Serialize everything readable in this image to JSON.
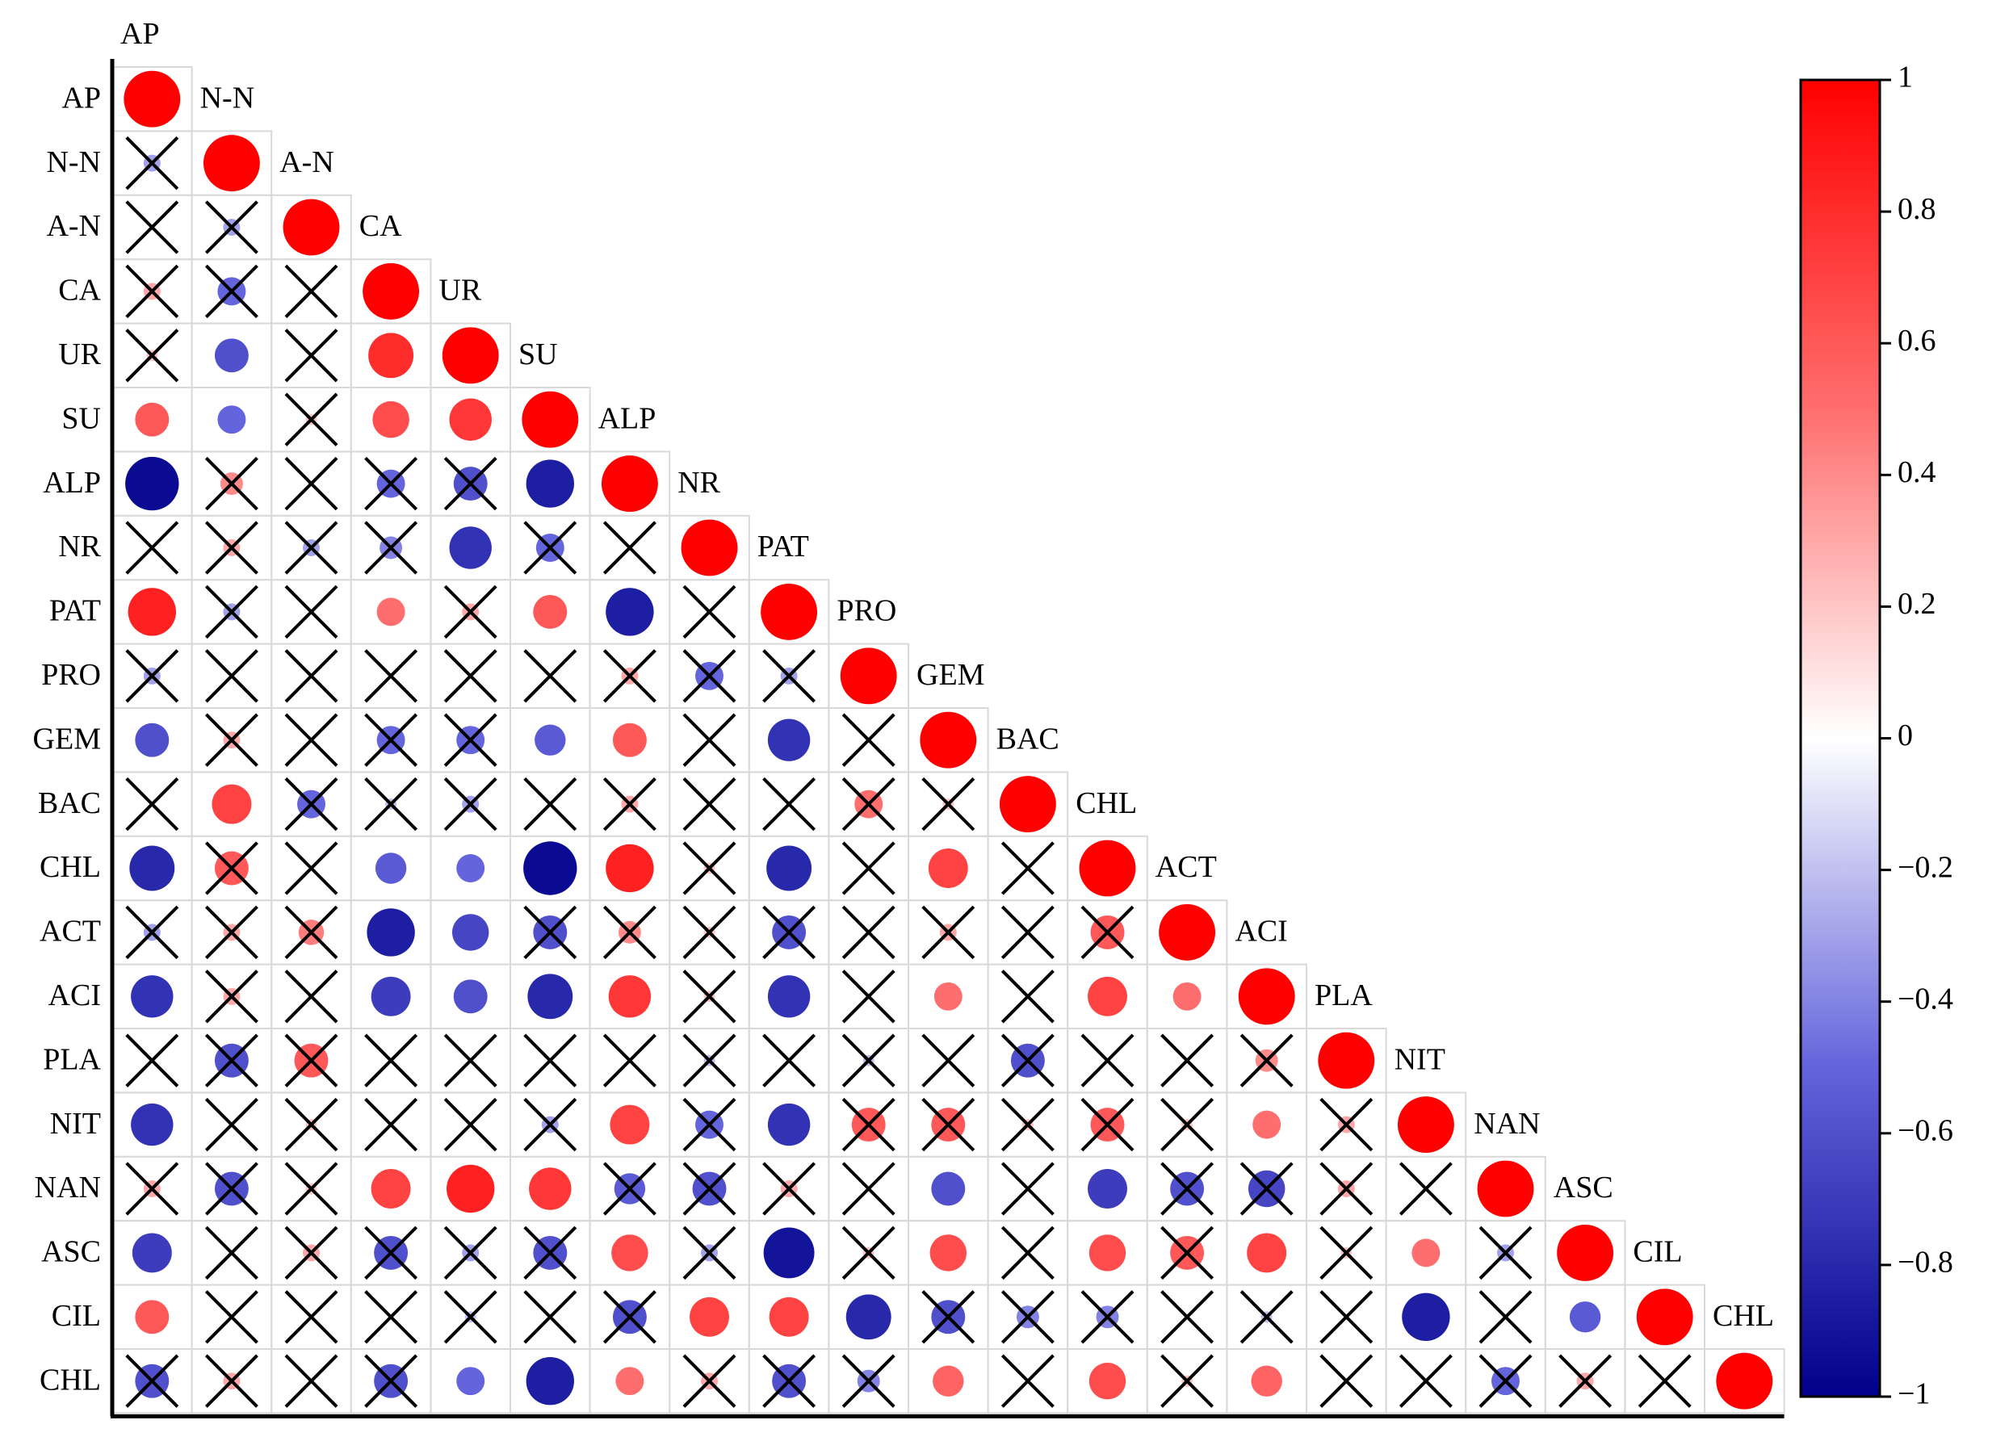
{
  "chart_data": {
    "type": "correlation",
    "labels": [
      "AP",
      "N-N",
      "A-N",
      "CA",
      "UR",
      "SU",
      "ALP",
      "NR",
      "PAT",
      "PRO",
      "GEM",
      "BAC",
      "CHL",
      "ACT",
      "ACI",
      "PLA",
      "NIT",
      "NAN",
      "ASC",
      "CIL",
      "CHL"
    ],
    "values": [
      [
        1
      ],
      [
        -0.3,
        1
      ],
      [
        -0.1,
        -0.3,
        1
      ],
      [
        0.3,
        -0.5,
        0,
        1
      ],
      [
        0.2,
        -0.6,
        0.1,
        0.8,
        1
      ],
      [
        0.6,
        -0.5,
        0.2,
        0.65,
        0.75,
        1
      ],
      [
        -0.95,
        0.4,
        0,
        -0.5,
        -0.6,
        -0.85,
        1
      ],
      [
        0,
        0.3,
        -0.3,
        -0.4,
        -0.75,
        -0.5,
        0,
        1
      ],
      [
        0.85,
        -0.3,
        0,
        0.5,
        0.3,
        0.6,
        -0.85,
        0.1,
        1
      ],
      [
        -0.3,
        0.1,
        0,
        0,
        0.1,
        0,
        0.3,
        -0.5,
        -0.3,
        1
      ],
      [
        -0.6,
        0.3,
        0,
        -0.5,
        -0.5,
        -0.55,
        0.6,
        0,
        -0.75,
        0.1,
        1
      ],
      [
        0,
        0.7,
        -0.5,
        -0.2,
        -0.3,
        -0.1,
        0.3,
        0,
        -0.1,
        0.5,
        0.2,
        1
      ],
      [
        -0.8,
        0.6,
        0,
        -0.55,
        -0.5,
        -0.95,
        0.85,
        0.2,
        -0.8,
        0,
        0.7,
        0.1,
        1
      ],
      [
        -0.3,
        0.3,
        0.45,
        -0.85,
        -0.65,
        -0.6,
        0.4,
        0.2,
        -0.6,
        0,
        0.3,
        0,
        0.6,
        1
      ],
      [
        -0.75,
        0.3,
        0,
        -0.7,
        -0.6,
        -0.8,
        0.75,
        0.2,
        -0.75,
        0,
        0.5,
        0,
        0.7,
        0.5,
        1
      ],
      [
        0,
        -0.6,
        0.6,
        0,
        0.1,
        0,
        0,
        -0.2,
        0,
        -0.2,
        0,
        -0.6,
        0,
        0,
        0.4,
        1
      ],
      [
        -0.75,
        0,
        0.2,
        -0.1,
        0,
        -0.3,
        0.7,
        -0.5,
        -0.75,
        0.6,
        0.6,
        0.2,
        0.6,
        0.2,
        0.5,
        0.3,
        1
      ],
      [
        0.3,
        -0.6,
        0.2,
        0.7,
        0.85,
        0.75,
        -0.55,
        -0.6,
        0.3,
        0,
        -0.6,
        0,
        -0.7,
        -0.6,
        -0.65,
        0.3,
        0,
        1
      ],
      [
        -0.7,
        0.1,
        0.3,
        -0.6,
        -0.3,
        -0.6,
        0.65,
        -0.3,
        -0.9,
        0.2,
        0.65,
        0,
        0.65,
        0.6,
        0.7,
        0.2,
        0.5,
        -0.3,
        1
      ],
      [
        0.6,
        0,
        0,
        0,
        -0.2,
        0,
        -0.6,
        0.7,
        0.7,
        -0.8,
        -0.6,
        -0.4,
        -0.4,
        0,
        -0.2,
        0,
        -0.85,
        0,
        -0.55,
        1
      ],
      [
        -0.6,
        0.3,
        0,
        -0.6,
        -0.5,
        -0.85,
        0.5,
        0.3,
        -0.6,
        -0.4,
        0.55,
        0,
        0.65,
        0.2,
        0.55,
        0,
        0.1,
        -0.5,
        0.3,
        0,
        1
      ]
    ],
    "crossed": [
      [
        false
      ],
      [
        true,
        false
      ],
      [
        true,
        true,
        false
      ],
      [
        true,
        true,
        true,
        false
      ],
      [
        true,
        false,
        true,
        false,
        false
      ],
      [
        false,
        false,
        true,
        false,
        false,
        false
      ],
      [
        false,
        true,
        true,
        true,
        true,
        false,
        false
      ],
      [
        true,
        true,
        true,
        true,
        false,
        true,
        true,
        false
      ],
      [
        false,
        true,
        true,
        false,
        true,
        false,
        false,
        true,
        false
      ],
      [
        true,
        true,
        true,
        true,
        true,
        true,
        true,
        true,
        true,
        false
      ],
      [
        false,
        true,
        true,
        true,
        true,
        false,
        false,
        true,
        false,
        true,
        false
      ],
      [
        true,
        false,
        true,
        true,
        true,
        true,
        true,
        true,
        true,
        true,
        true,
        false
      ],
      [
        false,
        true,
        true,
        false,
        false,
        false,
        false,
        true,
        false,
        true,
        false,
        true,
        false
      ],
      [
        true,
        true,
        true,
        false,
        false,
        true,
        true,
        true,
        true,
        true,
        true,
        true,
        true,
        false
      ],
      [
        false,
        true,
        true,
        false,
        false,
        false,
        false,
        true,
        false,
        true,
        false,
        true,
        false,
        false,
        false
      ],
      [
        true,
        true,
        true,
        true,
        true,
        true,
        true,
        true,
        true,
        true,
        true,
        true,
        true,
        true,
        true,
        false
      ],
      [
        false,
        true,
        true,
        true,
        true,
        true,
        false,
        true,
        false,
        true,
        true,
        true,
        true,
        true,
        false,
        true,
        false
      ],
      [
        true,
        true,
        true,
        false,
        false,
        false,
        true,
        true,
        true,
        true,
        false,
        true,
        false,
        true,
        true,
        true,
        true,
        false
      ],
      [
        false,
        true,
        true,
        true,
        true,
        true,
        false,
        true,
        false,
        true,
        false,
        true,
        false,
        true,
        false,
        true,
        false,
        true,
        false
      ],
      [
        false,
        true,
        true,
        true,
        true,
        true,
        true,
        false,
        false,
        false,
        true,
        true,
        true,
        true,
        true,
        true,
        false,
        true,
        false,
        false
      ],
      [
        true,
        true,
        true,
        true,
        false,
        false,
        false,
        true,
        true,
        true,
        false,
        true,
        false,
        true,
        false,
        true,
        true,
        true,
        true,
        true,
        false
      ]
    ],
    "colormap": [
      "#00008b",
      "#6464dc",
      "#ffffff",
      "#ff6e6e",
      "#ff0000"
    ],
    "colorbar_lim": [
      -1,
      1
    ],
    "colorbar_ticks": [
      1,
      0.8,
      0.6,
      0.4,
      0.2,
      0,
      {
        "value": -0.2,
        "label": "−0.2"
      },
      {
        "value": -0.4,
        "label": "−0.4"
      },
      {
        "value": -0.6,
        "label": "−0.6"
      },
      {
        "value": -0.8,
        "label": "−0.8"
      },
      {
        "value": -1,
        "label": "−1"
      }
    ]
  }
}
